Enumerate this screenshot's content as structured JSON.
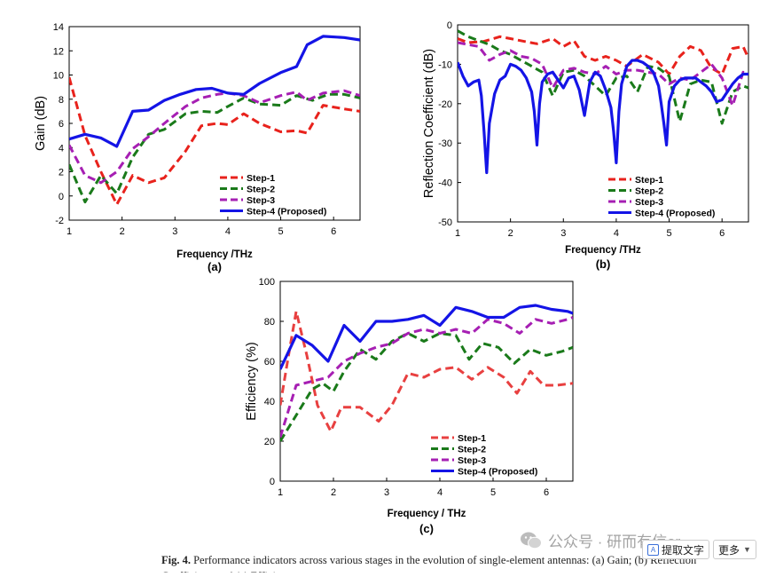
{
  "caption": {
    "label": "Fig. 4.",
    "text": "Performance indicators across various stages in the evolution of single-element antennas: (a) Gain; (b) Reflection Coefficient; and (c) Efficiency."
  },
  "watermark": {
    "text": "公众号 · 研而有信or"
  },
  "toolbar": {
    "extract_label": "提取文字",
    "more_label": "更多"
  },
  "chart_data": [
    {
      "id": "a",
      "type": "line",
      "panel_label": "(a)",
      "xlabel": "Frequency /THz",
      "ylabel": "Gain (dB)",
      "xlim": [
        1,
        6.5
      ],
      "ylim": [
        -2,
        14
      ],
      "xticks": [
        1,
        2,
        3,
        4,
        5,
        6
      ],
      "yticks": [
        -2,
        0,
        2,
        4,
        6,
        8,
        10,
        12,
        14
      ],
      "legend_position": "lower-right",
      "series": [
        {
          "name": "Step-1",
          "color": "#e8221c",
          "style": "dash",
          "x": [
            1,
            1.3,
            1.6,
            1.9,
            2.2,
            2.5,
            2.8,
            3.2,
            3.5,
            3.8,
            4.0,
            4.3,
            4.6,
            5.0,
            5.3,
            5.5,
            5.8,
            6.2,
            6.5
          ],
          "y": [
            9.8,
            5.0,
            2.0,
            -0.7,
            1.7,
            1.1,
            1.5,
            3.7,
            5.8,
            6.0,
            5.9,
            6.8,
            6.0,
            5.3,
            5.4,
            5.2,
            7.5,
            7.2,
            7.0
          ]
        },
        {
          "name": "Step-2",
          "color": "#1a7a1a",
          "style": "dash",
          "x": [
            1,
            1.3,
            1.6,
            1.9,
            2.2,
            2.5,
            2.8,
            3.2,
            3.5,
            3.8,
            4.0,
            4.3,
            4.6,
            5.0,
            5.3,
            5.6,
            5.9,
            6.2,
            6.5
          ],
          "y": [
            2.6,
            -0.5,
            1.7,
            0.2,
            3.2,
            5.1,
            5.5,
            6.8,
            7.0,
            6.9,
            7.4,
            8.1,
            7.6,
            7.5,
            8.3,
            7.9,
            8.4,
            8.4,
            8.1
          ]
        },
        {
          "name": "Step-3",
          "color": "#a61fb3",
          "style": "dash",
          "x": [
            1,
            1.3,
            1.6,
            1.9,
            2.2,
            2.5,
            2.8,
            3.2,
            3.5,
            3.8,
            4.0,
            4.3,
            4.6,
            5.0,
            5.3,
            5.5,
            5.8,
            6.2,
            6.5
          ],
          "y": [
            4.2,
            1.7,
            1.1,
            2.0,
            3.9,
            4.9,
            6.0,
            7.4,
            8.1,
            8.4,
            8.5,
            8.3,
            7.7,
            8.3,
            8.6,
            7.9,
            8.5,
            8.7,
            8.3
          ]
        },
        {
          "name": "Step-4 (Proposed)",
          "color": "#1414e6",
          "style": "solid",
          "x": [
            1,
            1.3,
            1.6,
            1.9,
            2.2,
            2.5,
            2.8,
            3.1,
            3.4,
            3.7,
            4.0,
            4.3,
            4.6,
            5.0,
            5.3,
            5.5,
            5.8,
            6.2,
            6.5
          ],
          "y": [
            4.7,
            5.1,
            4.8,
            4.1,
            7.0,
            7.1,
            7.9,
            8.4,
            8.8,
            8.9,
            8.5,
            8.4,
            9.3,
            10.2,
            10.7,
            12.5,
            13.2,
            13.1,
            12.9
          ]
        }
      ]
    },
    {
      "id": "b",
      "type": "line",
      "panel_label": "(b)",
      "xlabel": "Frequency /THz",
      "ylabel": "Reflection Coefficient (dB)",
      "xlim": [
        1,
        6.5
      ],
      "ylim": [
        -50,
        0
      ],
      "xticks": [
        1,
        2,
        3,
        4,
        5,
        6
      ],
      "yticks": [
        -50,
        -40,
        -30,
        -20,
        -10,
        0
      ],
      "legend_position": "lower-right",
      "series": [
        {
          "name": "Step-1",
          "color": "#e8221c",
          "style": "dash",
          "x": [
            1,
            1.2,
            1.5,
            1.8,
            2.0,
            2.3,
            2.5,
            2.8,
            3.0,
            3.2,
            3.4,
            3.6,
            3.8,
            4.0,
            4.2,
            4.5,
            4.8,
            5.0,
            5.2,
            5.4,
            5.6,
            5.8,
            6.0,
            6.2,
            6.4,
            6.5
          ],
          "y": [
            -3.5,
            -4.5,
            -4.2,
            -3.0,
            -3.5,
            -4.3,
            -4.8,
            -3.5,
            -5.5,
            -4.0,
            -8.0,
            -9.0,
            -8.0,
            -9.0,
            -10.5,
            -7.5,
            -9.5,
            -12.5,
            -8.0,
            -5.5,
            -6.5,
            -11.0,
            -12.5,
            -6.0,
            -5.5,
            -8.5
          ]
        },
        {
          "name": "Step-2",
          "color": "#1a7a1a",
          "style": "dash",
          "x": [
            1,
            1.2,
            1.4,
            1.6,
            1.8,
            2.0,
            2.2,
            2.4,
            2.6,
            2.8,
            3.0,
            3.2,
            3.4,
            3.6,
            3.8,
            4.0,
            4.2,
            4.4,
            4.6,
            4.8,
            5.0,
            5.2,
            5.4,
            5.6,
            5.8,
            6.0,
            6.2,
            6.4,
            6.5
          ],
          "y": [
            -1.5,
            -3.0,
            -4.0,
            -5.0,
            -6.5,
            -7.5,
            -9.0,
            -10.5,
            -12.0,
            -18.0,
            -12.0,
            -11.5,
            -13.0,
            -15.5,
            -18.0,
            -13.5,
            -13.0,
            -17.0,
            -10.5,
            -11.0,
            -13.0,
            -24.5,
            -15.0,
            -14.0,
            -14.5,
            -25.0,
            -17.0,
            -15.5,
            -16.0
          ]
        },
        {
          "name": "Step-3",
          "color": "#a61fb3",
          "style": "dash",
          "x": [
            1,
            1.2,
            1.4,
            1.6,
            1.8,
            2.0,
            2.2,
            2.4,
            2.6,
            2.8,
            3.0,
            3.2,
            3.4,
            3.6,
            3.8,
            4.0,
            4.2,
            4.4,
            4.6,
            4.8,
            5.0,
            5.2,
            5.4,
            5.6,
            5.8,
            6.0,
            6.2,
            6.4,
            6.5
          ],
          "y": [
            -4.5,
            -5.0,
            -5.5,
            -9.0,
            -7.5,
            -6.5,
            -8.0,
            -8.5,
            -10.0,
            -16.0,
            -11.5,
            -11.0,
            -12.0,
            -12.5,
            -10.5,
            -12.5,
            -11.5,
            -11.5,
            -12.0,
            -12.5,
            -15.0,
            -13.5,
            -14.0,
            -12.0,
            -10.0,
            -13.5,
            -20.5,
            -12.0,
            -12.5
          ]
        },
        {
          "name": "Step-4 (Proposed)",
          "color": "#1414e6",
          "style": "solid",
          "x": [
            1,
            1.1,
            1.2,
            1.3,
            1.4,
            1.45,
            1.5,
            1.55,
            1.6,
            1.7,
            1.8,
            1.9,
            2.0,
            2.1,
            2.2,
            2.3,
            2.4,
            2.45,
            2.5,
            2.55,
            2.6,
            2.7,
            2.8,
            2.9,
            3.0,
            3.1,
            3.2,
            3.3,
            3.4,
            3.5,
            3.6,
            3.7,
            3.8,
            3.9,
            3.95,
            4.0,
            4.05,
            4.1,
            4.2,
            4.3,
            4.4,
            4.5,
            4.6,
            4.7,
            4.8,
            4.85,
            4.9,
            4.95,
            5.0,
            5.1,
            5.2,
            5.3,
            5.4,
            5.5,
            5.6,
            5.7,
            5.8,
            5.9,
            6.0,
            6.1,
            6.2,
            6.3,
            6.4,
            6.5
          ],
          "y": [
            -9.5,
            -13.0,
            -15.5,
            -14.5,
            -14.0,
            -18.0,
            -27.0,
            -37.5,
            -25.0,
            -17.5,
            -14.0,
            -13.0,
            -10.0,
            -10.5,
            -11.5,
            -13.5,
            -17.0,
            -22.0,
            -30.5,
            -20.0,
            -14.5,
            -12.5,
            -12.0,
            -14.0,
            -16.0,
            -13.5,
            -13.0,
            -16.5,
            -23.0,
            -14.5,
            -12.0,
            -13.0,
            -16.5,
            -21.0,
            -27.0,
            -35.0,
            -22.0,
            -15.0,
            -10.5,
            -9.0,
            -9.0,
            -9.5,
            -10.5,
            -12.0,
            -15.5,
            -20.0,
            -25.0,
            -30.5,
            -19.5,
            -15.5,
            -14.0,
            -13.5,
            -13.5,
            -13.5,
            -14.5,
            -15.5,
            -17.0,
            -19.5,
            -19.0,
            -17.0,
            -15.0,
            -13.5,
            -12.5,
            -12.5
          ]
        }
      ]
    },
    {
      "id": "c",
      "type": "line",
      "panel_label": "(c)",
      "xlabel": "Frequency / THz",
      "ylabel": "Efficiency (%)",
      "xlim": [
        1,
        6.5
      ],
      "ylim": [
        0,
        100
      ],
      "xticks": [
        1,
        2,
        3,
        4,
        5,
        6
      ],
      "yticks": [
        0,
        20,
        40,
        60,
        80,
        100
      ],
      "legend_position": "lower-right",
      "series": [
        {
          "name": "Step-1",
          "color": "#e84040",
          "style": "dash",
          "x": [
            1,
            1.15,
            1.3,
            1.5,
            1.7,
            1.95,
            2.15,
            2.5,
            2.85,
            3.1,
            3.4,
            3.7,
            4.0,
            4.3,
            4.6,
            4.9,
            5.2,
            5.45,
            5.7,
            5.95,
            6.2,
            6.5
          ],
          "y": [
            38,
            62,
            85,
            63,
            38,
            25,
            37,
            37,
            30,
            38,
            54,
            52,
            56,
            57,
            51,
            57,
            52,
            44,
            55,
            48,
            48,
            49
          ]
        },
        {
          "name": "Step-2",
          "color": "#1a7a1a",
          "style": "dash",
          "x": [
            1,
            1.3,
            1.6,
            1.8,
            2.0,
            2.2,
            2.5,
            2.8,
            3.1,
            3.4,
            3.7,
            4.0,
            4.3,
            4.55,
            4.8,
            5.1,
            5.4,
            5.7,
            6.0,
            6.3,
            6.5
          ],
          "y": [
            20,
            33,
            46,
            49,
            45,
            55,
            66,
            61,
            70,
            74,
            70,
            74,
            73,
            61,
            69,
            67,
            59,
            66,
            63,
            65,
            67
          ]
        },
        {
          "name": "Step-3",
          "color": "#a61fb3",
          "style": "dash",
          "x": [
            1,
            1.3,
            1.6,
            1.9,
            2.2,
            2.5,
            2.8,
            3.1,
            3.4,
            3.7,
            4.0,
            4.3,
            4.6,
            4.9,
            5.2,
            5.5,
            5.8,
            6.1,
            6.4,
            6.5
          ],
          "y": [
            22,
            48,
            50,
            52,
            60,
            64,
            67,
            69,
            74,
            76,
            74,
            76,
            74,
            81,
            79,
            74,
            81,
            79,
            81,
            82
          ]
        },
        {
          "name": "Step-4 (Proposed)",
          "color": "#1414e6",
          "style": "solid",
          "x": [
            1,
            1.3,
            1.6,
            1.9,
            2.2,
            2.5,
            2.8,
            3.1,
            3.4,
            3.7,
            4.0,
            4.3,
            4.6,
            4.9,
            5.2,
            5.5,
            5.8,
            6.1,
            6.4,
            6.5
          ],
          "y": [
            56,
            73,
            68,
            60,
            78,
            70,
            80,
            80,
            81,
            83,
            78,
            87,
            85,
            82,
            82,
            87,
            88,
            86,
            85,
            84
          ]
        }
      ]
    }
  ]
}
